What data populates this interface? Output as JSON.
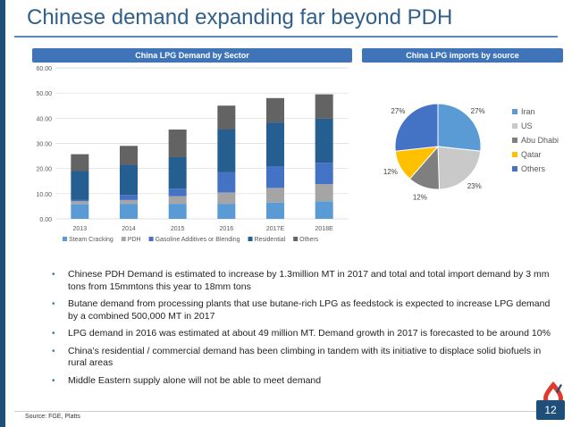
{
  "page": {
    "title": "Chinese demand expanding far beyond PDH",
    "source": "Source: FGE, Platts",
    "page_number": "12"
  },
  "bar_panel": {
    "header": "China LPG Demand by Sector"
  },
  "pie_panel": {
    "header": "China LPG imports by source"
  },
  "bullets": [
    "Chinese PDH Demand is estimated to increase by 1.3million MT in 2017 and total and total import demand by 3 mm tons from 15mmtons this year to 18mm tons",
    "Butane demand from processing plants that use butane-rich LPG as feedstock is expected to increase LPG demand by a combined 500,000 MT in 2017",
    "LPG demand in 2016 was estimated at about 49 million MT. Demand growth in 2017 is forecasted to be around 10%",
    "China’s residential / commercial demand has been climbing in tandem with its initiative to displace solid biofuels in rural areas",
    "Middle Eastern supply alone will not be able to meet demand"
  ],
  "chart_data": [
    {
      "type": "bar",
      "stacked": true,
      "categories": [
        "2013",
        "2014",
        "2015",
        "2016",
        "2017E",
        "2018E"
      ],
      "ytick_labels": [
        "0.00",
        "10.00",
        "20.00",
        "30.00",
        "40.00",
        "50.00",
        "60.00"
      ],
      "ylim": [
        0,
        60
      ],
      "grid": true,
      "legend_position": "bottom",
      "series": [
        {
          "name": "Steam Cracking",
          "color": "#5b9bd5",
          "values": [
            5.8,
            6.0,
            6.0,
            6.0,
            6.5,
            7.0
          ]
        },
        {
          "name": "PDH",
          "color": "#a5a5a5",
          "values": [
            1.2,
            1.5,
            3.0,
            4.5,
            5.8,
            6.8
          ]
        },
        {
          "name": "Gasoline Additives or Blending",
          "color": "#4472c4",
          "values": [
            0.5,
            2.0,
            3.0,
            8.0,
            8.5,
            8.5
          ]
        },
        {
          "name": "Residential",
          "color": "#255e91",
          "values": [
            11.5,
            12.0,
            12.5,
            17.0,
            17.5,
            17.5
          ]
        },
        {
          "name": "Others",
          "color": "#636363",
          "values": [
            6.7,
            7.5,
            11.0,
            9.5,
            9.7,
            9.7
          ]
        }
      ]
    },
    {
      "type": "pie",
      "legend_position": "right",
      "slices": [
        {
          "name": "Iran",
          "value": 27,
          "label": "27%",
          "color": "#5b9bd5"
        },
        {
          "name": "US",
          "value": 23,
          "label": "23%",
          "color": "#c9c9c9"
        },
        {
          "name": "Abu Dhabi",
          "value": 12,
          "label": "12%",
          "color": "#7f7f7f"
        },
        {
          "name": "Qatar",
          "value": 12,
          "label": "12%",
          "color": "#ffc000"
        },
        {
          "name": "Others",
          "value": 27,
          "label": "27%",
          "color": "#4472c4"
        }
      ]
    }
  ]
}
